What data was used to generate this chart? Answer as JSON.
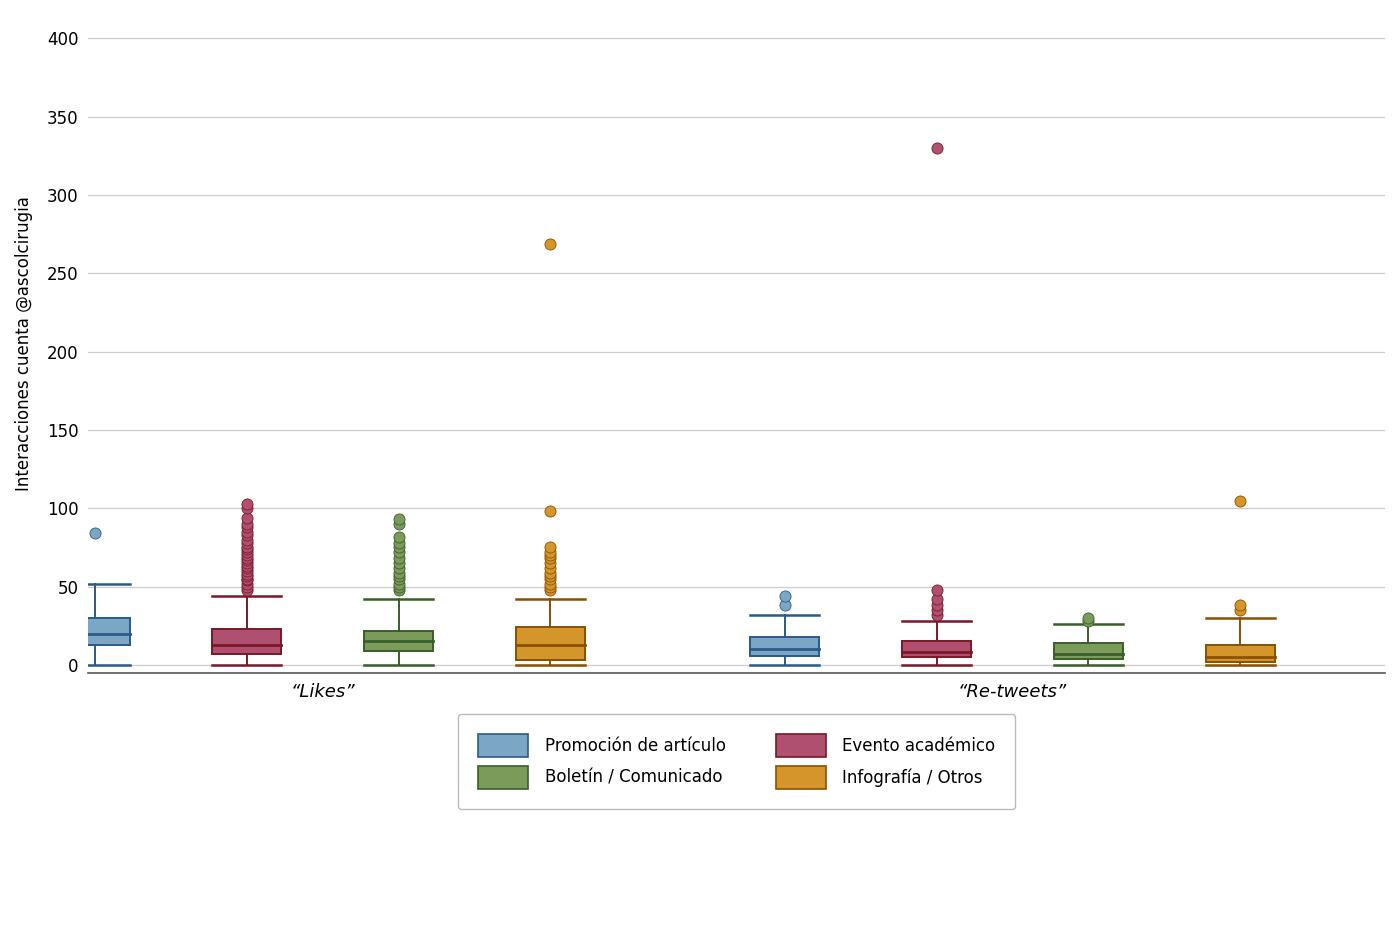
{
  "ylabel": "Interacciones cuenta @ascolcirugia",
  "group_labels": [
    "“Likes”",
    "“Re-tweets”"
  ],
  "categories": [
    "Promoción de artículo",
    "Evento académico",
    "Boletín / Comunicado",
    "Infografía / Otros"
  ],
  "colors": [
    "#7BA7C4",
    "#B05070",
    "#7A9B5A",
    "#D4952A"
  ],
  "edge_colors": [
    "#2A5A8A",
    "#7A1828",
    "#3A5E2A",
    "#8A5000"
  ],
  "ylim": [
    -5,
    415
  ],
  "yticks": [
    0,
    50,
    100,
    150,
    200,
    250,
    300,
    350,
    400
  ],
  "likes": {
    "promo_articulo": {
      "whislo": 0,
      "q1": 13,
      "med": 20,
      "q3": 30,
      "whishi": 52,
      "fliers": [
        84
      ]
    },
    "evento_academico": {
      "whislo": 0,
      "q1": 7,
      "med": 13,
      "q3": 23,
      "whishi": 44,
      "fliers": [
        48,
        50,
        52,
        54,
        55,
        57,
        58,
        60,
        62,
        63,
        65,
        67,
        68,
        70,
        72,
        74,
        75,
        78,
        80,
        83,
        85,
        88,
        90,
        94,
        100,
        103
      ]
    },
    "boletin_comunicado": {
      "whislo": 0,
      "q1": 9,
      "med": 15,
      "q3": 22,
      "whishi": 42,
      "fliers": [
        48,
        50,
        52,
        55,
        57,
        59,
        62,
        65,
        68,
        72,
        75,
        78,
        82,
        90,
        93
      ]
    },
    "infografia_otros": {
      "whislo": 0,
      "q1": 3,
      "med": 13,
      "q3": 24,
      "whishi": 42,
      "fliers": [
        48,
        50,
        52,
        55,
        57,
        59,
        62,
        65,
        68,
        70,
        72,
        75,
        98,
        269
      ]
    }
  },
  "retweets": {
    "promo_articulo": {
      "whislo": 0,
      "q1": 6,
      "med": 10,
      "q3": 18,
      "whishi": 32,
      "fliers": [
        38,
        44
      ]
    },
    "evento_academico": {
      "whislo": 0,
      "q1": 5,
      "med": 8,
      "q3": 15,
      "whishi": 28,
      "fliers": [
        32,
        35,
        38,
        42,
        48,
        330
      ]
    },
    "boletin_comunicado": {
      "whislo": 0,
      "q1": 4,
      "med": 7,
      "q3": 14,
      "whishi": 26,
      "fliers": [
        28,
        30
      ]
    },
    "infografia_otros": {
      "whislo": 0,
      "q1": 2,
      "med": 5,
      "q3": 13,
      "whishi": 30,
      "fliers": [
        35,
        38,
        105
      ]
    }
  },
  "box_width": 0.5,
  "group_centers": [
    2.5,
    7.5
  ],
  "offsets": [
    -1.65,
    -0.55,
    0.55,
    1.65
  ],
  "background_color": "#FFFFFF",
  "grid_color": "#CCCCCC"
}
